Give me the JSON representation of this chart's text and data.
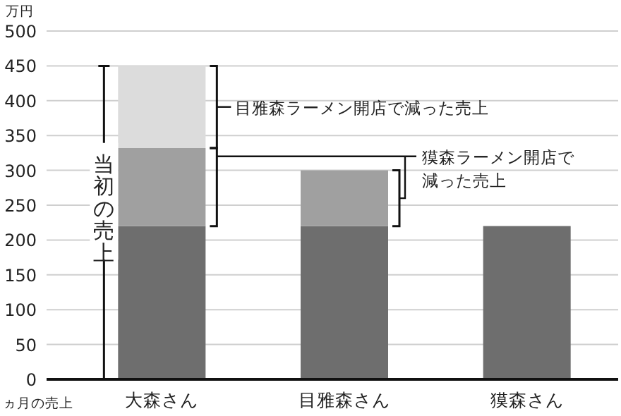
{
  "chart_data": {
    "type": "bar",
    "stacked": true,
    "ylabel": "万円",
    "xlabel": "ヵ月の売上",
    "categories": [
      "大森さん",
      "目雅森さん",
      "獏森さん"
    ],
    "series": [
      {
        "color": "#6e6e6e",
        "values": [
          220,
          220,
          220
        ]
      },
      {
        "color": "#a0a0a0",
        "values": [
          112,
          80,
          null
        ]
      },
      {
        "color": "#dcdcdc",
        "values": [
          118,
          null,
          null
        ]
      }
    ],
    "ylim": [
      0,
      500
    ],
    "yticks": [
      0,
      50,
      100,
      150,
      200,
      250,
      300,
      350,
      400,
      450,
      500
    ],
    "grid": "y",
    "annotations": [
      "目雅森ラーメン開店で減った売上",
      "獏森ラーメン開店で減った売上",
      "当初の売上"
    ]
  }
}
